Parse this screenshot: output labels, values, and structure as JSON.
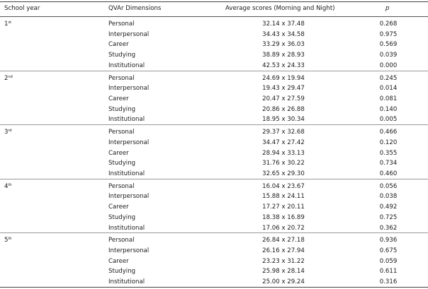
{
  "table": {
    "headers": [
      "School year",
      "QVAr Dimensions",
      "Average scores (Morning and Night)",
      "p"
    ],
    "groups": [
      {
        "year": "1",
        "suffix": "st",
        "rows": [
          {
            "dimension": "Personal",
            "average": "32.14 x 37.48",
            "p": "0.268"
          },
          {
            "dimension": "Interpersonal",
            "average": "34.43 x 34.58",
            "p": "0.975"
          },
          {
            "dimension": "Career",
            "average": "33.29 x 36.03",
            "p": "0.569"
          },
          {
            "dimension": "Studying",
            "average": "38.89 x 28.93",
            "p": "0.039"
          },
          {
            "dimension": "Institutional",
            "average": "42.53 x 24.33",
            "p": "0.000"
          }
        ]
      },
      {
        "year": "2",
        "suffix": "nd",
        "rows": [
          {
            "dimension": "Personal",
            "average": "24.69 x 19.94",
            "p": "0.245"
          },
          {
            "dimension": "Interpersonal",
            "average": "19.43 x 29.47",
            "p": "0.014"
          },
          {
            "dimension": "Career",
            "average": "20.47 x 27.59",
            "p": "0.081"
          },
          {
            "dimension": "Studying",
            "average": "20.86 x 26.88",
            "p": "0.140"
          },
          {
            "dimension": "Institutional",
            "average": "18.95 x 30.34",
            "p": "0.005"
          }
        ]
      },
      {
        "year": "3",
        "suffix": "rd",
        "rows": [
          {
            "dimension": "Personal",
            "average": "29.37 x 32.68",
            "p": "0.466"
          },
          {
            "dimension": "Interpersonal",
            "average": "34.47 x 27.42",
            "p": "0.120"
          },
          {
            "dimension": "Career",
            "average": "28.94 x 33.13",
            "p": "0.355"
          },
          {
            "dimension": "Studying",
            "average": "31.76 x 30.22",
            "p": "0.734"
          },
          {
            "dimension": "Institutional",
            "average": "32.65 x 29.30",
            "p": "0.460"
          }
        ]
      },
      {
        "year": "4",
        "suffix": "th",
        "rows": [
          {
            "dimension": "Personal",
            "average": "16.04 x 23.67",
            "p": "0.056"
          },
          {
            "dimension": "Interpersonal",
            "average": "15.88 x 24.11",
            "p": "0.038"
          },
          {
            "dimension": "Career",
            "average": "17.27 x 20.11",
            "p": "0.492"
          },
          {
            "dimension": "Studying",
            "average": "18.38 x 16.89",
            "p": "0.725"
          },
          {
            "dimension": "Institutional",
            "average": "17.06 x 20.72",
            "p": "0.362"
          }
        ]
      },
      {
        "year": "5",
        "suffix": "th",
        "rows": [
          {
            "dimension": "Personal",
            "average": "26.84 x 27.18",
            "p": "0.936"
          },
          {
            "dimension": "Interpersonal",
            "average": "26.16 x 27.94",
            "p": "0.675"
          },
          {
            "dimension": "Career",
            "average": "23.23 x 31.22",
            "p": "0.059"
          },
          {
            "dimension": "Studying",
            "average": "25.98 x 28.14",
            "p": "0.611"
          },
          {
            "dimension": "Institutional",
            "average": "25.00 x 29.24",
            "p": "0.316"
          }
        ]
      }
    ]
  }
}
